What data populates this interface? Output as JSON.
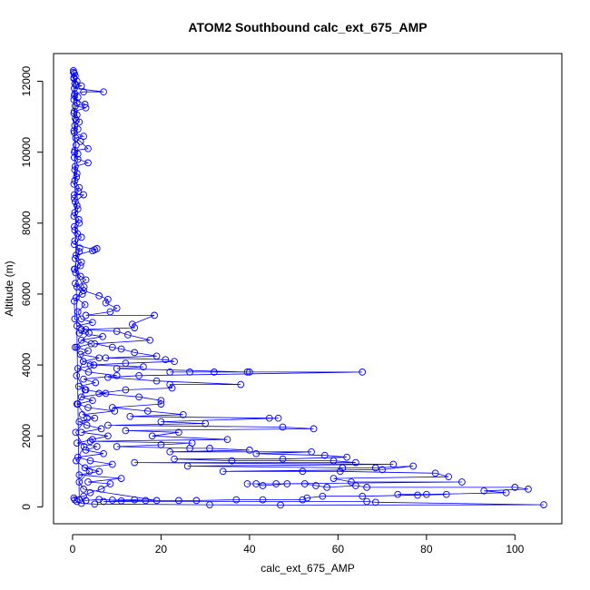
{
  "chart_data": {
    "type": "scatter",
    "title": "ATOM2 Southbound calc_ext_675_AMP",
    "xlabel": "calc_ext_675_AMP",
    "ylabel": "Altitude (m)",
    "xlim": [
      -4.3,
      110.6
    ],
    "ylim": [
      -476,
      12781
    ],
    "x_ticks": [
      0,
      20,
      40,
      60,
      80,
      100
    ],
    "y_ticks": [
      0,
      2000,
      4000,
      6000,
      8000,
      10000,
      12000
    ],
    "grid": false,
    "legend": "none",
    "series_color": "#0000ff",
    "series": [
      {
        "points": [
          [
            0.2,
            12300
          ],
          [
            0.4,
            12220
          ],
          [
            0.6,
            12150
          ],
          [
            0.3,
            12080
          ],
          [
            1.0,
            12000
          ],
          [
            0.5,
            11930
          ],
          [
            2.0,
            11870
          ],
          [
            0.4,
            11800
          ],
          [
            7.0,
            11700
          ],
          [
            2.5,
            11700
          ],
          [
            0.5,
            11650
          ],
          [
            1.2,
            11550
          ],
          [
            0.3,
            11480
          ],
          [
            2.8,
            11350
          ],
          [
            0.6,
            11300
          ],
          [
            3.0,
            11250
          ],
          [
            0.4,
            11150
          ],
          [
            1.0,
            11050
          ],
          [
            0.6,
            10950
          ],
          [
            1.5,
            10850
          ],
          [
            0.5,
            10750
          ],
          [
            1.2,
            10650
          ],
          [
            0.4,
            10550
          ],
          [
            2.5,
            10450
          ],
          [
            0.7,
            10400
          ],
          [
            1.8,
            10300
          ],
          [
            3.5,
            10100
          ],
          [
            0.5,
            10050
          ],
          [
            1.2,
            9950
          ],
          [
            0.4,
            9850
          ],
          [
            3.5,
            9700
          ],
          [
            0.6,
            9600
          ],
          [
            1.0,
            9400
          ],
          [
            0.5,
            9200
          ],
          [
            1.5,
            9000
          ],
          [
            0.4,
            8800
          ],
          [
            2.5,
            8800
          ],
          [
            0.6,
            8600
          ],
          [
            1.2,
            8400
          ],
          [
            0.3,
            8200
          ],
          [
            1.5,
            8000
          ],
          [
            0.5,
            7800
          ],
          [
            2.0,
            7600
          ],
          [
            0.4,
            7400
          ],
          [
            5.0,
            7250
          ],
          [
            5.5,
            7280
          ],
          [
            4.5,
            7220
          ],
          [
            0.8,
            7100
          ],
          [
            2.0,
            6900
          ],
          [
            0.5,
            6700
          ],
          [
            1.8,
            6500
          ],
          [
            0.6,
            6300
          ],
          [
            2.5,
            6100
          ],
          [
            6.0,
            5950
          ],
          [
            8.0,
            5850
          ],
          [
            7.5,
            5750
          ],
          [
            10.0,
            5600
          ],
          [
            8.5,
            5500
          ],
          [
            3.0,
            5400
          ],
          [
            18.5,
            5400
          ],
          [
            13.5,
            5150
          ],
          [
            14.0,
            5050
          ],
          [
            2.0,
            5000
          ],
          [
            10.0,
            4950
          ],
          [
            12.5,
            4850
          ],
          [
            17.5,
            4700
          ],
          [
            5.0,
            4600
          ],
          [
            9.0,
            4500
          ],
          [
            11.0,
            4450
          ],
          [
            14.0,
            4350
          ],
          [
            19.0,
            4250
          ],
          [
            7.5,
            4200
          ],
          [
            21.0,
            4150
          ],
          [
            23.0,
            4100
          ],
          [
            12.0,
            4050
          ],
          [
            4.0,
            4000
          ],
          [
            16.0,
            3950
          ],
          [
            10.0,
            3900
          ],
          [
            39.5,
            3800
          ],
          [
            40.0,
            3800
          ],
          [
            32.0,
            3800
          ],
          [
            26.5,
            3800
          ],
          [
            22.0,
            3800
          ],
          [
            65.5,
            3800
          ],
          [
            15.0,
            3700
          ],
          [
            8.0,
            3650
          ],
          [
            19.0,
            3550
          ],
          [
            38.0,
            3450
          ],
          [
            22.0,
            3450
          ],
          [
            22.5,
            3350
          ],
          [
            12.0,
            3300
          ],
          [
            6.0,
            3200
          ],
          [
            15.0,
            3100
          ],
          [
            20.0,
            3000
          ],
          [
            20.0,
            2900
          ],
          [
            9.0,
            2800
          ],
          [
            17.0,
            2700
          ],
          [
            25.0,
            2600
          ],
          [
            13.0,
            2550
          ],
          [
            44.5,
            2500
          ],
          [
            46.5,
            2500
          ],
          [
            20.0,
            2400
          ],
          [
            30.0,
            2350
          ],
          [
            8.0,
            2300
          ],
          [
            47.5,
            2250
          ],
          [
            54.5,
            2200
          ],
          [
            12.0,
            2150
          ],
          [
            24.0,
            2100
          ],
          [
            18.0,
            2000
          ],
          [
            35.0,
            1900
          ],
          [
            4.0,
            1850
          ],
          [
            27.0,
            1800
          ],
          [
            20.0,
            1750
          ],
          [
            10.0,
            1700
          ],
          [
            26.5,
            1650
          ],
          [
            31.0,
            1650
          ],
          [
            40.0,
            1600
          ],
          [
            22.0,
            1550
          ],
          [
            54.0,
            1550
          ],
          [
            41.5,
            1500
          ],
          [
            57.0,
            1450
          ],
          [
            62.0,
            1400
          ],
          [
            47.5,
            1350
          ],
          [
            23.0,
            1350
          ],
          [
            36.0,
            1300
          ],
          [
            59.0,
            1300
          ],
          [
            64.0,
            1250
          ],
          [
            14.0,
            1250
          ],
          [
            72.5,
            1200
          ],
          [
            26.0,
            1150
          ],
          [
            61.0,
            1100
          ],
          [
            68.5,
            1100
          ],
          [
            77.0,
            1150
          ],
          [
            70.0,
            1050
          ],
          [
            34.0,
            1000
          ],
          [
            52.0,
            1000
          ],
          [
            60.5,
            1000
          ],
          [
            82.0,
            950
          ],
          [
            85.0,
            850
          ],
          [
            59.0,
            800
          ],
          [
            63.0,
            700
          ],
          [
            88.0,
            700
          ],
          [
            46.0,
            650
          ],
          [
            39.5,
            650
          ],
          [
            41.5,
            650
          ],
          [
            43.0,
            600
          ],
          [
            48.5,
            650
          ],
          [
            52.5,
            650
          ],
          [
            55.0,
            600
          ],
          [
            57.5,
            550
          ],
          [
            64.0,
            600
          ],
          [
            66.5,
            550
          ],
          [
            100.0,
            550
          ],
          [
            103.0,
            500
          ],
          [
            93.0,
            450
          ],
          [
            98.0,
            400
          ],
          [
            80.0,
            350
          ],
          [
            73.5,
            350
          ],
          [
            78.0,
            330
          ],
          [
            84.5,
            350
          ],
          [
            65.5,
            300
          ],
          [
            56.5,
            300
          ],
          [
            53.0,
            250
          ],
          [
            52.0,
            200
          ],
          [
            43.0,
            200
          ],
          [
            37.0,
            200
          ],
          [
            28.0,
            180
          ],
          [
            24.0,
            180
          ],
          [
            16.5,
            180
          ],
          [
            11.0,
            170
          ],
          [
            7.0,
            150
          ],
          [
            66.5,
            150
          ],
          [
            68.5,
            130
          ],
          [
            106.5,
            60
          ],
          [
            47.0,
            50
          ],
          [
            31.0,
            60
          ],
          [
            5.0,
            80
          ],
          [
            2.0,
            100
          ],
          [
            1.0,
            150
          ],
          [
            0.5,
            200
          ],
          [
            0.3,
            250
          ],
          [
            2.5,
            300
          ],
          [
            4.0,
            400
          ],
          [
            6.5,
            500
          ],
          [
            8.5,
            650
          ],
          [
            3.5,
            700
          ],
          [
            11.0,
            800
          ],
          [
            1.5,
            900
          ],
          [
            6.0,
            1000
          ],
          [
            2.8,
            1100
          ],
          [
            9.0,
            1200
          ],
          [
            4.0,
            1300
          ],
          [
            1.2,
            1400
          ],
          [
            7.0,
            1500
          ],
          [
            3.0,
            1600
          ],
          [
            5.5,
            1700
          ],
          [
            1.0,
            1800
          ],
          [
            4.5,
            1900
          ],
          [
            8.0,
            2000
          ],
          [
            2.0,
            2100
          ],
          [
            6.5,
            2200
          ],
          [
            3.2,
            2300
          ],
          [
            1.5,
            2400
          ],
          [
            5.0,
            2500
          ],
          [
            2.2,
            2600
          ],
          [
            9.5,
            2700
          ],
          [
            3.5,
            2800
          ],
          [
            1.2,
            2900
          ],
          [
            4.5,
            3000
          ],
          [
            2.0,
            3100
          ],
          [
            7.5,
            3200
          ],
          [
            3.0,
            3300
          ],
          [
            1.4,
            3400
          ],
          [
            5.2,
            3500
          ],
          [
            2.5,
            3600
          ],
          [
            10.0,
            3700
          ],
          [
            3.6,
            3800
          ],
          [
            1.2,
            3900
          ],
          [
            4.8,
            4000
          ],
          [
            2.4,
            4100
          ],
          [
            6.0,
            4200
          ],
          [
            1.8,
            4300
          ],
          [
            3.5,
            4400
          ],
          [
            1.0,
            4500
          ],
          [
            4.2,
            4600
          ],
          [
            2.0,
            4700
          ],
          [
            6.8,
            4800
          ],
          [
            1.5,
            4900
          ],
          [
            3.0,
            5000
          ],
          [
            1.0,
            5100
          ],
          [
            4.5,
            5200
          ],
          [
            2.0,
            5300
          ],
          [
            1.2,
            5500
          ],
          [
            2.8,
            5700
          ],
          [
            0.8,
            5900
          ],
          [
            2.2,
            6000
          ],
          [
            1.0,
            6200
          ],
          [
            3.0,
            6400
          ],
          [
            0.7,
            6600
          ],
          [
            1.8,
            6800
          ],
          [
            0.6,
            7000
          ],
          [
            1.5,
            7200
          ],
          [
            0.5,
            7500
          ],
          [
            1.1,
            7700
          ],
          [
            0.4,
            7900
          ],
          [
            1.4,
            8100
          ],
          [
            0.5,
            8300
          ],
          [
            1.0,
            8500
          ],
          [
            0.4,
            8700
          ],
          [
            1.3,
            8900
          ],
          [
            0.3,
            9100
          ],
          [
            0.9,
            9300
          ],
          [
            0.5,
            9500
          ],
          [
            1.2,
            9800
          ],
          [
            0.4,
            10000
          ],
          [
            0.8,
            10200
          ],
          [
            0.3,
            10600
          ],
          [
            0.8,
            10900
          ],
          [
            0.3,
            11100
          ],
          [
            1.0,
            11400
          ],
          [
            0.4,
            11600
          ],
          [
            0.8,
            11900
          ],
          [
            0.3,
            12100
          ],
          [
            0.2,
            12250
          ],
          [
            1.5,
            200
          ],
          [
            3.0,
            180
          ],
          [
            6.0,
            210
          ],
          [
            9.0,
            190
          ],
          [
            14.0,
            200
          ],
          [
            19.0,
            180
          ],
          [
            2.5,
            500
          ],
          [
            1.5,
            700
          ],
          [
            3.8,
            1000
          ],
          [
            0.8,
            1300
          ],
          [
            2.6,
            1700
          ],
          [
            0.7,
            2100
          ],
          [
            3.3,
            2500
          ],
          [
            1.0,
            2900
          ],
          [
            2.8,
            3300
          ],
          [
            0.9,
            3700
          ],
          [
            2.4,
            4100
          ],
          [
            0.6,
            4500
          ],
          [
            3.7,
            4900
          ],
          [
            0.5,
            5300
          ],
          [
            0.4,
            5800
          ],
          [
            2.6,
            6200
          ],
          [
            0.4,
            6700
          ],
          [
            1.6,
            7300
          ]
        ]
      }
    ]
  }
}
